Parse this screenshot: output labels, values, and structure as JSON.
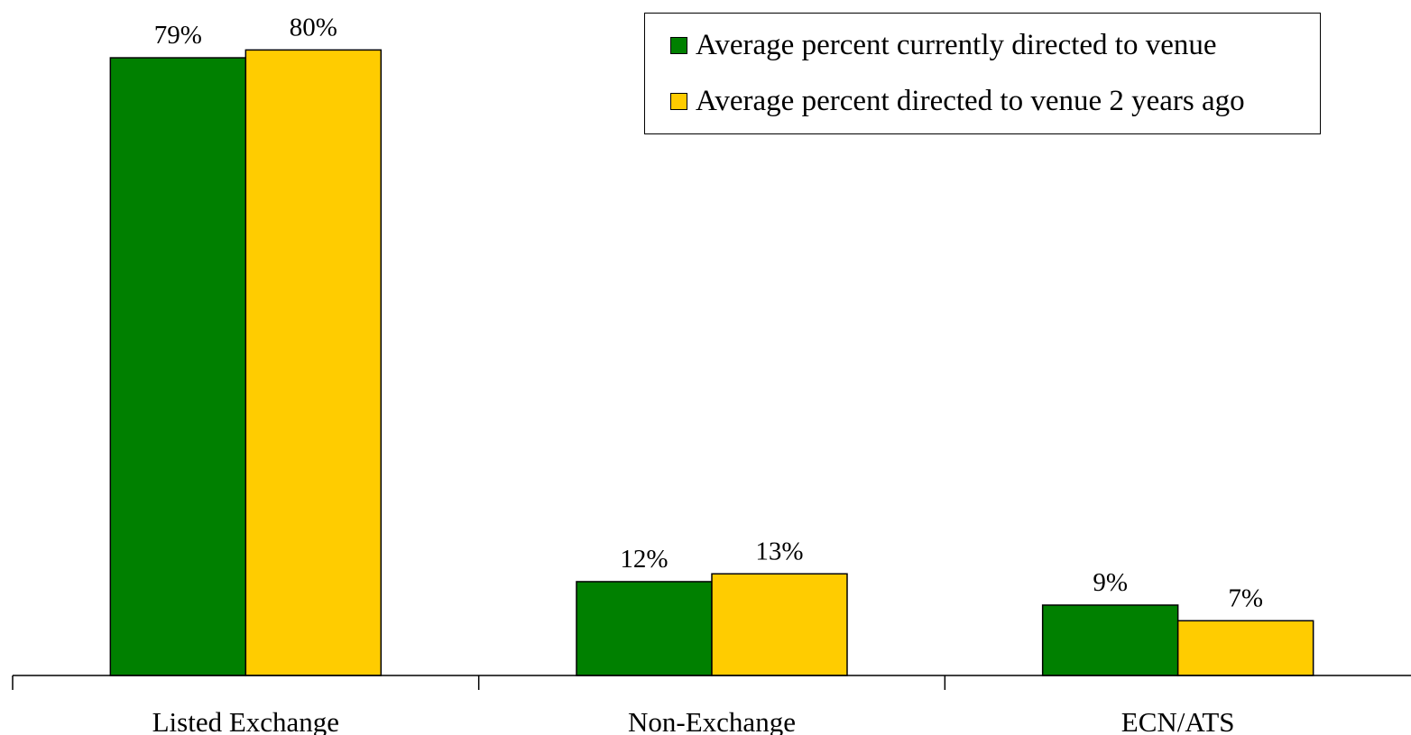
{
  "chart_data": {
    "type": "bar",
    "title": "",
    "xlabel": "",
    "ylabel": "",
    "ylim": [
      0,
      80
    ],
    "grid": false,
    "legend_position": "top-right",
    "categories": [
      "Listed Exchange",
      "Non-Exchange",
      "ECN/ATS"
    ],
    "series": [
      {
        "name": "Average percent currently directed to venue",
        "color": "#008000",
        "values": [
          79,
          12,
          9
        ],
        "labels": [
          "79%",
          "12%",
          "9%"
        ]
      },
      {
        "name": "Average percent directed to venue 2 years ago",
        "color": "#FFCC00",
        "values": [
          80,
          13,
          7
        ],
        "labels": [
          "80%",
          "13%",
          "7%"
        ]
      }
    ]
  }
}
